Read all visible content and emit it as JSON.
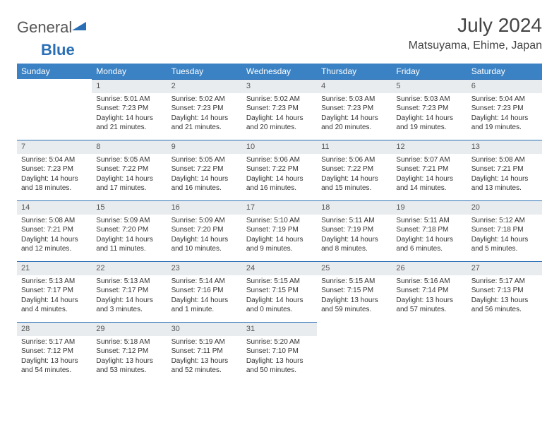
{
  "brand": {
    "t1": "General",
    "t2": "Blue",
    "triangle_color": "#2a6fb5"
  },
  "title": "July 2024",
  "location": "Matsuyama, Ehime, Japan",
  "daynames": [
    "Sunday",
    "Monday",
    "Tuesday",
    "Wednesday",
    "Thursday",
    "Friday",
    "Saturday"
  ],
  "header_bg": "#3b82c4",
  "weeks": [
    [
      {
        "n": "",
        "l": [
          "",
          "",
          "",
          ""
        ]
      },
      {
        "n": "1",
        "l": [
          "Sunrise: 5:01 AM",
          "Sunset: 7:23 PM",
          "Daylight: 14 hours",
          "and 21 minutes."
        ]
      },
      {
        "n": "2",
        "l": [
          "Sunrise: 5:02 AM",
          "Sunset: 7:23 PM",
          "Daylight: 14 hours",
          "and 21 minutes."
        ]
      },
      {
        "n": "3",
        "l": [
          "Sunrise: 5:02 AM",
          "Sunset: 7:23 PM",
          "Daylight: 14 hours",
          "and 20 minutes."
        ]
      },
      {
        "n": "4",
        "l": [
          "Sunrise: 5:03 AM",
          "Sunset: 7:23 PM",
          "Daylight: 14 hours",
          "and 20 minutes."
        ]
      },
      {
        "n": "5",
        "l": [
          "Sunrise: 5:03 AM",
          "Sunset: 7:23 PM",
          "Daylight: 14 hours",
          "and 19 minutes."
        ]
      },
      {
        "n": "6",
        "l": [
          "Sunrise: 5:04 AM",
          "Sunset: 7:23 PM",
          "Daylight: 14 hours",
          "and 19 minutes."
        ]
      }
    ],
    [
      {
        "n": "7",
        "l": [
          "Sunrise: 5:04 AM",
          "Sunset: 7:23 PM",
          "Daylight: 14 hours",
          "and 18 minutes."
        ]
      },
      {
        "n": "8",
        "l": [
          "Sunrise: 5:05 AM",
          "Sunset: 7:22 PM",
          "Daylight: 14 hours",
          "and 17 minutes."
        ]
      },
      {
        "n": "9",
        "l": [
          "Sunrise: 5:05 AM",
          "Sunset: 7:22 PM",
          "Daylight: 14 hours",
          "and 16 minutes."
        ]
      },
      {
        "n": "10",
        "l": [
          "Sunrise: 5:06 AM",
          "Sunset: 7:22 PM",
          "Daylight: 14 hours",
          "and 16 minutes."
        ]
      },
      {
        "n": "11",
        "l": [
          "Sunrise: 5:06 AM",
          "Sunset: 7:22 PM",
          "Daylight: 14 hours",
          "and 15 minutes."
        ]
      },
      {
        "n": "12",
        "l": [
          "Sunrise: 5:07 AM",
          "Sunset: 7:21 PM",
          "Daylight: 14 hours",
          "and 14 minutes."
        ]
      },
      {
        "n": "13",
        "l": [
          "Sunrise: 5:08 AM",
          "Sunset: 7:21 PM",
          "Daylight: 14 hours",
          "and 13 minutes."
        ]
      }
    ],
    [
      {
        "n": "14",
        "l": [
          "Sunrise: 5:08 AM",
          "Sunset: 7:21 PM",
          "Daylight: 14 hours",
          "and 12 minutes."
        ]
      },
      {
        "n": "15",
        "l": [
          "Sunrise: 5:09 AM",
          "Sunset: 7:20 PM",
          "Daylight: 14 hours",
          "and 11 minutes."
        ]
      },
      {
        "n": "16",
        "l": [
          "Sunrise: 5:09 AM",
          "Sunset: 7:20 PM",
          "Daylight: 14 hours",
          "and 10 minutes."
        ]
      },
      {
        "n": "17",
        "l": [
          "Sunrise: 5:10 AM",
          "Sunset: 7:19 PM",
          "Daylight: 14 hours",
          "and 9 minutes."
        ]
      },
      {
        "n": "18",
        "l": [
          "Sunrise: 5:11 AM",
          "Sunset: 7:19 PM",
          "Daylight: 14 hours",
          "and 8 minutes."
        ]
      },
      {
        "n": "19",
        "l": [
          "Sunrise: 5:11 AM",
          "Sunset: 7:18 PM",
          "Daylight: 14 hours",
          "and 6 minutes."
        ]
      },
      {
        "n": "20",
        "l": [
          "Sunrise: 5:12 AM",
          "Sunset: 7:18 PM",
          "Daylight: 14 hours",
          "and 5 minutes."
        ]
      }
    ],
    [
      {
        "n": "21",
        "l": [
          "Sunrise: 5:13 AM",
          "Sunset: 7:17 PM",
          "Daylight: 14 hours",
          "and 4 minutes."
        ]
      },
      {
        "n": "22",
        "l": [
          "Sunrise: 5:13 AM",
          "Sunset: 7:17 PM",
          "Daylight: 14 hours",
          "and 3 minutes."
        ]
      },
      {
        "n": "23",
        "l": [
          "Sunrise: 5:14 AM",
          "Sunset: 7:16 PM",
          "Daylight: 14 hours",
          "and 1 minute."
        ]
      },
      {
        "n": "24",
        "l": [
          "Sunrise: 5:15 AM",
          "Sunset: 7:15 PM",
          "Daylight: 14 hours",
          "and 0 minutes."
        ]
      },
      {
        "n": "25",
        "l": [
          "Sunrise: 5:15 AM",
          "Sunset: 7:15 PM",
          "Daylight: 13 hours",
          "and 59 minutes."
        ]
      },
      {
        "n": "26",
        "l": [
          "Sunrise: 5:16 AM",
          "Sunset: 7:14 PM",
          "Daylight: 13 hours",
          "and 57 minutes."
        ]
      },
      {
        "n": "27",
        "l": [
          "Sunrise: 5:17 AM",
          "Sunset: 7:13 PM",
          "Daylight: 13 hours",
          "and 56 minutes."
        ]
      }
    ],
    [
      {
        "n": "28",
        "l": [
          "Sunrise: 5:17 AM",
          "Sunset: 7:12 PM",
          "Daylight: 13 hours",
          "and 54 minutes."
        ]
      },
      {
        "n": "29",
        "l": [
          "Sunrise: 5:18 AM",
          "Sunset: 7:12 PM",
          "Daylight: 13 hours",
          "and 53 minutes."
        ]
      },
      {
        "n": "30",
        "l": [
          "Sunrise: 5:19 AM",
          "Sunset: 7:11 PM",
          "Daylight: 13 hours",
          "and 52 minutes."
        ]
      },
      {
        "n": "31",
        "l": [
          "Sunrise: 5:20 AM",
          "Sunset: 7:10 PM",
          "Daylight: 13 hours",
          "and 50 minutes."
        ]
      },
      {
        "n": "",
        "l": [
          "",
          "",
          "",
          ""
        ]
      },
      {
        "n": "",
        "l": [
          "",
          "",
          "",
          ""
        ]
      },
      {
        "n": "",
        "l": [
          "",
          "",
          "",
          ""
        ]
      }
    ]
  ]
}
